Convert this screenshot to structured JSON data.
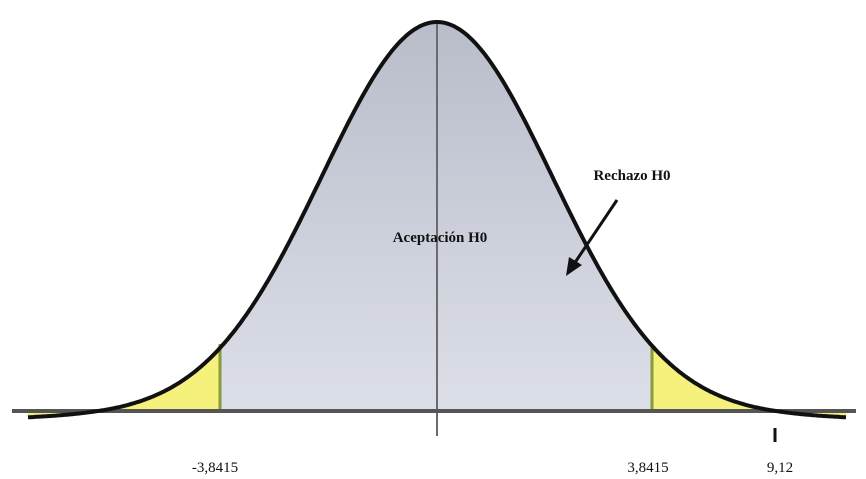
{
  "diagram": {
    "region_labels": {
      "acceptance": "Aceptación H0",
      "rejection": "Rechazo H0"
    },
    "axis_labels": [
      "-3,8415",
      "3,8415",
      "9,12"
    ]
  }
}
